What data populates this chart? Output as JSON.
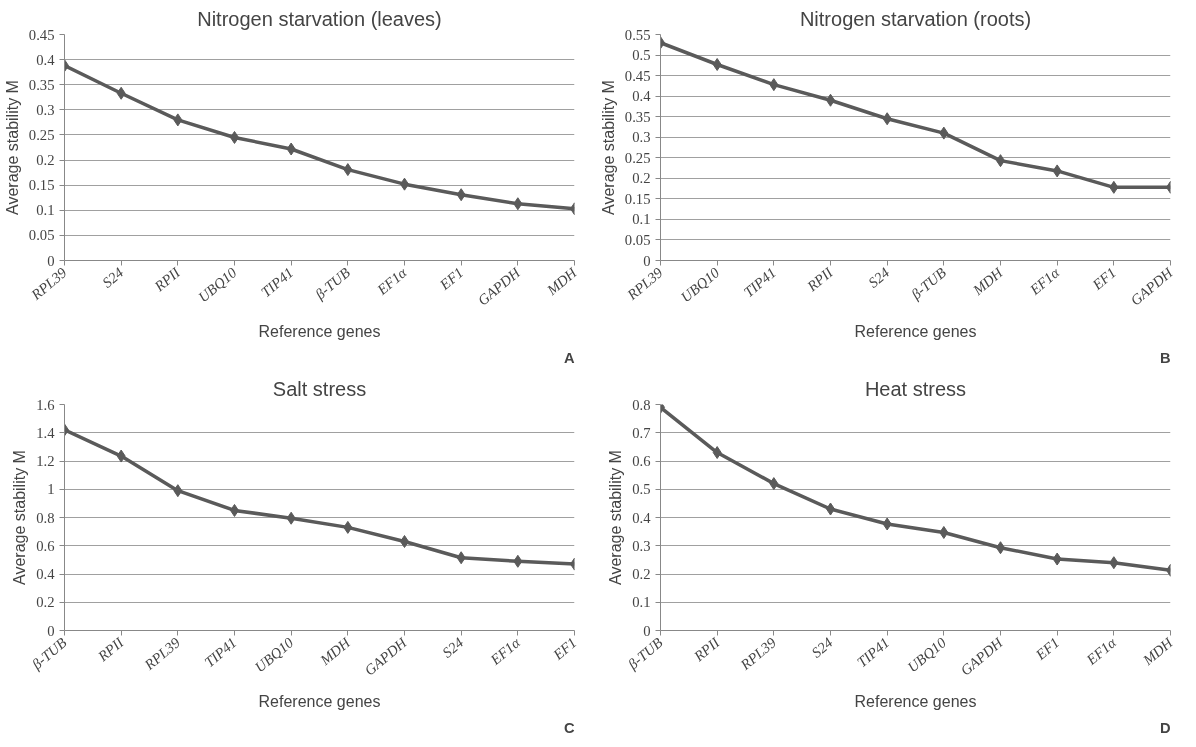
{
  "chart_data": [
    {
      "type": "line",
      "title": "Nitrogen starvation (leaves)",
      "xlabel": "Reference genes",
      "ylabel": "Average stability M",
      "annotations": [
        "A"
      ],
      "categories": [
        "RPL39",
        "S24",
        "RPII",
        "UBQ10",
        "TIP41",
        "β-TUB",
        "EF1α",
        "EF1",
        "GAPDH",
        "MDH"
      ],
      "series": [
        {
          "color": "#5a5a5a",
          "values": [
            0.388,
            0.333,
            0.28,
            0.245,
            0.222,
            0.181,
            0.152,
            0.131,
            0.113,
            0.103
          ]
        }
      ],
      "ylim": [
        0,
        0.45
      ],
      "yticks": [
        0,
        0.05,
        0.1,
        0.15,
        0.2,
        0.25,
        0.3,
        0.35,
        0.4,
        0.45
      ],
      "grid": "y",
      "marker": "diamond",
      "line_style": "solid"
    },
    {
      "type": "line",
      "title": "Nitrogen starvation (roots)",
      "xlabel": "Reference genes",
      "ylabel": "Average stability M",
      "annotations": [
        "B"
      ],
      "categories": [
        "RPL39",
        "UBQ10",
        "TIP41",
        "RPII",
        "S24",
        "β-TUB",
        "MDH",
        "EF1α",
        "EF1",
        "GAPDH"
      ],
      "series": [
        {
          "color": "#5a5a5a",
          "values": [
            0.53,
            0.477,
            0.428,
            0.39,
            0.345,
            0.31,
            0.243,
            0.218,
            0.178,
            0.178
          ]
        }
      ],
      "ylim": [
        0,
        0.55
      ],
      "yticks": [
        0,
        0.05,
        0.1,
        0.15,
        0.2,
        0.25,
        0.3,
        0.35,
        0.4,
        0.45,
        0.5,
        0.55
      ],
      "grid": "y",
      "marker": "diamond",
      "line_style": "solid"
    },
    {
      "type": "line",
      "title": "Salt stress",
      "xlabel": "Reference genes",
      "ylabel": "Average stability M",
      "annotations": [
        "C"
      ],
      "categories": [
        "β-TUB",
        "RPII",
        "RPL39",
        "TIP41",
        "UBQ10",
        "MDH",
        "GAPDH",
        "S24",
        "EF1α",
        "EF1"
      ],
      "series": [
        {
          "color": "#5a5a5a",
          "values": [
            1.42,
            1.235,
            0.99,
            0.85,
            0.795,
            0.73,
            0.63,
            0.515,
            0.49,
            0.47
          ]
        }
      ],
      "ylim": [
        0,
        1.6
      ],
      "yticks": [
        0,
        0.2,
        0.4,
        0.6,
        0.8,
        1,
        1.2,
        1.4,
        1.6
      ],
      "grid": "y",
      "marker": "diamond",
      "line_style": "solid"
    },
    {
      "type": "line",
      "title": "Heat stress",
      "xlabel": "Reference genes",
      "ylabel": "Average stability M",
      "annotations": [
        "D"
      ],
      "categories": [
        "β-TUB",
        "RPII",
        "RPL39",
        "S24",
        "TIP41",
        "UBQ10",
        "GAPDH",
        "EF1",
        "EF1α",
        "MDH"
      ],
      "series": [
        {
          "color": "#5a5a5a",
          "values": [
            0.79,
            0.63,
            0.52,
            0.43,
            0.377,
            0.347,
            0.293,
            0.253,
            0.24,
            0.213
          ]
        }
      ],
      "ylim": [
        0,
        0.8
      ],
      "yticks": [
        0,
        0.1,
        0.2,
        0.3,
        0.4,
        0.5,
        0.6,
        0.7,
        0.8
      ],
      "grid": "y",
      "marker": "diamond",
      "line_style": "solid"
    }
  ]
}
